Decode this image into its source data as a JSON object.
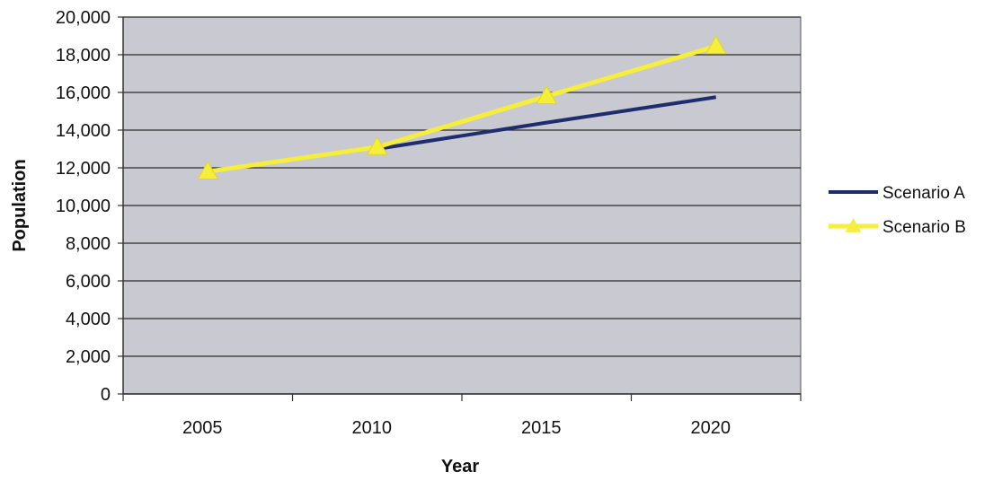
{
  "chart_data": {
    "type": "line",
    "title": "",
    "xlabel": "Year",
    "ylabel": "Population",
    "categories": [
      "2005",
      "2010",
      "2015",
      "2020"
    ],
    "ylim": [
      0,
      20000
    ],
    "yticks": [
      0,
      2000,
      4000,
      6000,
      8000,
      10000,
      12000,
      14000,
      16000,
      18000,
      20000
    ],
    "ytick_labels": [
      "0",
      "2,000",
      "4,000",
      "6,000",
      "8,000",
      "10,000",
      "12,000",
      "14,000",
      "16,000",
      "18,000",
      "20,000"
    ],
    "grid": true,
    "legend_position": "right",
    "plot_background": "#c9c9d1",
    "series": [
      {
        "name": "Scenario A",
        "color": "#1f2d6e",
        "marker": "none",
        "values": [
          null,
          13000,
          14400,
          15750
        ]
      },
      {
        "name": "Scenario B",
        "color": "#f5ee3a",
        "marker": "triangle",
        "values": [
          11800,
          13100,
          15800,
          18450
        ]
      }
    ]
  }
}
